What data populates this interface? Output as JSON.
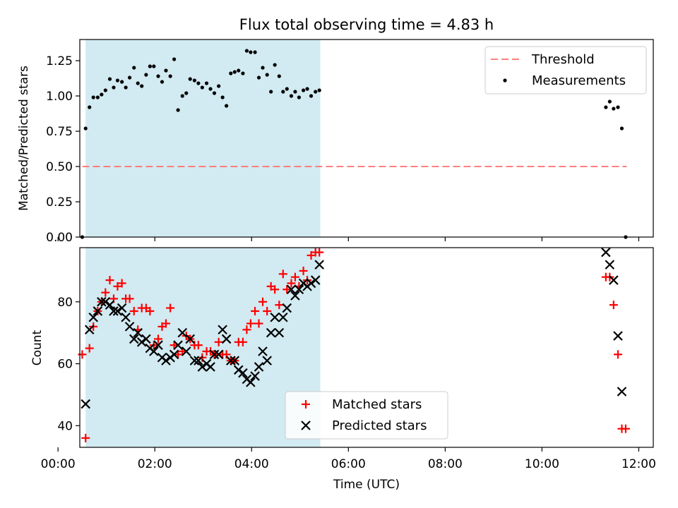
{
  "chart_data": [
    {
      "type": "scatter",
      "title": "Flux total observing time = 4.83 h",
      "ylabel": "Matched/Predicted stars",
      "xlabel": "",
      "xlim": [
        0.45,
        12.3
      ],
      "ylim": [
        0,
        1.4
      ],
      "x_ticks": [
        0,
        2,
        4,
        6,
        8,
        10,
        12
      ],
      "y_ticks": [
        0.0,
        0.25,
        0.5,
        0.75,
        1.0,
        1.25
      ],
      "y_tick_labels": [
        "0.00",
        "0.25",
        "0.50",
        "0.75",
        "1.00",
        "1.25"
      ],
      "shaded_span": {
        "x": [
          0.57,
          5.42
        ],
        "color": "#add8e6"
      },
      "threshold": {
        "name": "Threshold",
        "y": 0.5,
        "x": [
          0.5,
          11.75
        ],
        "color": "#ff7f7f",
        "style": "dashed"
      },
      "legend": {
        "placement": "upper right",
        "entries": [
          "Threshold",
          "Measurements"
        ]
      },
      "series": [
        {
          "name": "Measurements",
          "marker": "dot",
          "color": "#000000",
          "x": [
            0.5,
            0.57,
            0.65,
            0.73,
            0.82,
            0.9,
            0.98,
            1.07,
            1.15,
            1.23,
            1.32,
            1.4,
            1.48,
            1.57,
            1.65,
            1.73,
            1.82,
            1.9,
            1.98,
            2.07,
            2.15,
            2.23,
            2.32,
            2.4,
            2.48,
            2.57,
            2.65,
            2.73,
            2.82,
            2.9,
            2.98,
            3.07,
            3.15,
            3.23,
            3.32,
            3.4,
            3.48,
            3.57,
            3.65,
            3.73,
            3.82,
            3.9,
            3.98,
            4.07,
            4.15,
            4.23,
            4.32,
            4.4,
            4.48,
            4.57,
            4.65,
            4.73,
            4.82,
            4.9,
            4.98,
            5.07,
            5.15,
            5.23,
            5.32,
            5.4,
            11.32,
            11.4,
            11.48,
            11.57,
            11.65,
            11.73
          ],
          "y": [
            0.0,
            0.77,
            0.92,
            0.99,
            0.99,
            1.01,
            1.04,
            1.12,
            1.06,
            1.11,
            1.1,
            1.06,
            1.13,
            1.2,
            1.09,
            1.07,
            1.15,
            1.21,
            1.21,
            1.14,
            1.1,
            1.18,
            1.14,
            1.26,
            0.9,
            1.0,
            1.02,
            1.12,
            1.11,
            1.09,
            1.06,
            1.09,
            1.05,
            1.02,
            1.07,
            0.99,
            0.93,
            1.16,
            1.17,
            1.18,
            1.16,
            1.32,
            1.31,
            1.31,
            1.13,
            1.2,
            1.15,
            1.03,
            1.22,
            1.14,
            1.03,
            1.05,
            1.0,
            1.03,
            0.99,
            1.04,
            1.05,
            1.0,
            1.03,
            1.04,
            0.92,
            0.96,
            0.91,
            0.92,
            0.77,
            0.0
          ]
        }
      ]
    },
    {
      "type": "scatter",
      "title": "",
      "ylabel": "Count",
      "xlabel": "Time (UTC)",
      "xlim": [
        0.45,
        12.3
      ],
      "ylim": [
        33,
        97.5
      ],
      "x_ticks": [
        0,
        2,
        4,
        6,
        8,
        10,
        12
      ],
      "x_tick_labels": [
        "00:00",
        "02:00",
        "04:00",
        "06:00",
        "08:00",
        "10:00",
        "12:00"
      ],
      "y_ticks": [
        40,
        60,
        80
      ],
      "y_tick_labels": [
        "40",
        "60",
        "80"
      ],
      "shaded_span": {
        "x": [
          0.57,
          5.42
        ],
        "color": "#add8e6"
      },
      "legend": {
        "placement": "lower center",
        "entries": [
          "Matched stars",
          "Predicted stars"
        ]
      },
      "series": [
        {
          "name": "Matched stars",
          "marker": "plus",
          "color": "#ff0000",
          "x": [
            0.5,
            0.57,
            0.65,
            0.73,
            0.82,
            0.9,
            0.98,
            1.07,
            1.15,
            1.23,
            1.32,
            1.4,
            1.48,
            1.57,
            1.65,
            1.73,
            1.82,
            1.9,
            1.98,
            2.07,
            2.15,
            2.23,
            2.32,
            2.4,
            2.48,
            2.57,
            2.65,
            2.73,
            2.82,
            2.9,
            2.98,
            3.07,
            3.15,
            3.23,
            3.32,
            3.4,
            3.48,
            3.57,
            3.65,
            3.73,
            3.82,
            3.9,
            3.98,
            4.07,
            4.15,
            4.23,
            4.32,
            4.4,
            4.48,
            4.57,
            4.65,
            4.73,
            4.82,
            4.9,
            4.98,
            5.07,
            5.15,
            5.23,
            5.32,
            5.4,
            11.32,
            11.4,
            11.48,
            11.57,
            11.65,
            11.73
          ],
          "y": [
            63,
            36,
            65,
            72,
            77,
            80,
            83,
            87,
            81,
            85,
            86,
            81,
            81,
            77,
            71,
            78,
            78,
            77,
            66,
            68,
            72,
            73,
            78,
            66,
            63,
            64,
            69,
            68,
            66,
            66,
            62,
            64,
            64,
            63,
            67,
            63,
            63,
            61,
            61,
            67,
            67,
            71,
            73,
            77,
            73,
            80,
            77,
            85,
            84,
            79,
            89,
            84,
            86,
            88,
            85,
            90,
            87,
            95,
            96,
            96,
            88,
            88,
            79,
            63,
            39,
            39
          ]
        },
        {
          "name": "Predicted stars",
          "marker": "x",
          "color": "#000000",
          "x": [
            0.57,
            0.65,
            0.73,
            0.82,
            0.9,
            0.98,
            1.07,
            1.15,
            1.23,
            1.32,
            1.4,
            1.48,
            1.57,
            1.65,
            1.73,
            1.82,
            1.9,
            1.98,
            2.07,
            2.15,
            2.23,
            2.32,
            2.4,
            2.48,
            2.57,
            2.65,
            2.73,
            2.82,
            2.9,
            2.98,
            3.07,
            3.15,
            3.23,
            3.32,
            3.4,
            3.48,
            3.57,
            3.65,
            3.73,
            3.82,
            3.9,
            3.98,
            4.07,
            4.15,
            4.23,
            4.32,
            4.4,
            4.48,
            4.57,
            4.65,
            4.73,
            4.82,
            4.9,
            4.98,
            5.07,
            5.15,
            5.23,
            5.32,
            5.4,
            11.32,
            11.4,
            11.48,
            11.57,
            11.65
          ],
          "y": [
            47,
            71,
            75,
            77,
            80,
            80,
            79,
            77,
            77,
            78,
            75,
            72,
            68,
            70,
            67,
            68,
            65,
            64,
            66,
            62,
            61,
            62,
            63,
            66,
            70,
            64,
            68,
            61,
            61,
            59,
            60,
            59,
            63,
            63,
            71,
            68,
            61,
            61,
            58,
            57,
            55,
            54,
            56,
            59,
            64,
            61,
            70,
            75,
            70,
            75,
            78,
            84,
            82,
            84,
            86,
            85,
            86,
            87,
            92,
            96,
            92,
            87,
            69,
            51
          ]
        }
      ]
    }
  ]
}
